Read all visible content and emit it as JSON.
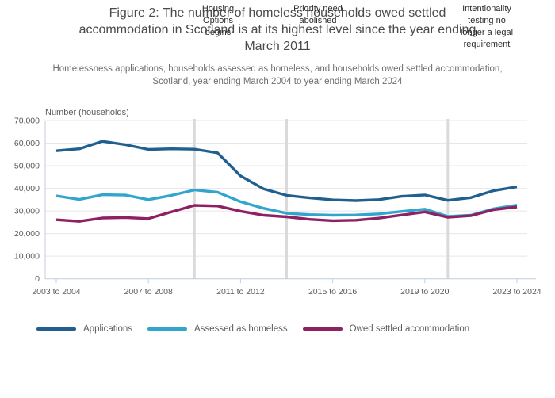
{
  "figure": {
    "title_lines": [
      "Figure 2: The number of homeless households owed settled",
      "accommodation in Scotland is at its highest level since the year ending",
      "March 2011"
    ],
    "subtitle_lines": [
      "Homelessness applications, households assessed as homeless, and households owed settled accommodation,",
      "Scotland, year ending March 2004 to year ending March 2024"
    ]
  },
  "chart_data": {
    "type": "line",
    "title": "Figure 2: The number of homeless households owed settled accommodation in Scotland is at its highest level since the year ending March 2011",
    "subtitle": "Homelessness applications, households assessed as homeless, and households owed settled accommodation, Scotland, year ending March 2004 to year ending March 2024",
    "ylabel": "Number (households)",
    "xlabel": "",
    "ylim": [
      0,
      70000
    ],
    "ytick_step": 10000,
    "ytick_labels": [
      "0",
      "10,000",
      "20,000",
      "30,000",
      "40,000",
      "50,000",
      "60,000",
      "70,000"
    ],
    "grid": "horizontal",
    "legend_position": "bottom",
    "x": [
      "2003 to 2004",
      "2004 to 2005",
      "2005 to 2006",
      "2006 to 2007",
      "2007 to 2008",
      "2008 to 2009",
      "2009 to 2010",
      "2010 to 2011",
      "2011 to 2012",
      "2012 to 2013",
      "2013 to 2014",
      "2014 to 2015",
      "2015 to 2016",
      "2016 to 2017",
      "2017 to 2018",
      "2018 to 2019",
      "2019 to 2020",
      "2020 to 2021",
      "2021 to 2022",
      "2022 to 2023",
      "2023 to 2024"
    ],
    "x_tick_indices": [
      0,
      4,
      8,
      12,
      16,
      20
    ],
    "x_tick_labels": [
      "2003 to 2004",
      "2007 to 2008",
      "2011 to 2012",
      "2015 to 2016",
      "2019 to 2020",
      "2023 to 2024"
    ],
    "series": [
      {
        "name": "Applications",
        "color": "#20608e",
        "values": [
          56600,
          57500,
          60800,
          59300,
          57200,
          57500,
          57300,
          55700,
          45500,
          39800,
          36900,
          35800,
          34900,
          34600,
          35000,
          36500,
          37100,
          34700,
          35900,
          39000,
          40700
        ]
      },
      {
        "name": "Assessed as homeless",
        "color": "#31a5cb",
        "values": [
          36700,
          35100,
          37200,
          37000,
          35000,
          36900,
          39300,
          38300,
          34100,
          31200,
          29000,
          28400,
          28100,
          28200,
          28700,
          29800,
          30800,
          27600,
          28100,
          31000,
          32600
        ]
      },
      {
        "name": "Owed settled accommodation",
        "color": "#8e2064",
        "values": [
          26100,
          25400,
          26900,
          27100,
          26600,
          29600,
          32500,
          32200,
          29900,
          28100,
          27400,
          26300,
          25700,
          25900,
          26800,
          28200,
          29600,
          27200,
          27900,
          30600,
          31800
        ]
      }
    ],
    "annotations": [
      {
        "label": "Housing\nOptions\nbegins",
        "x": "2009 to 2010",
        "x_index": 6
      },
      {
        "label": "Priority need\nabolished",
        "x": "2013 to 2014",
        "x_index": 10
      },
      {
        "label": "Intentionality\ntesting no\nlonger a legal\nrequirement",
        "x": "2020 to 2021",
        "x_index": 17
      }
    ],
    "colors": {
      "gridline": "#e7e7e7",
      "annotation_band": "#dadada",
      "axis_line": "#c3cfd9",
      "axis_text": "#5a5a5a"
    }
  }
}
